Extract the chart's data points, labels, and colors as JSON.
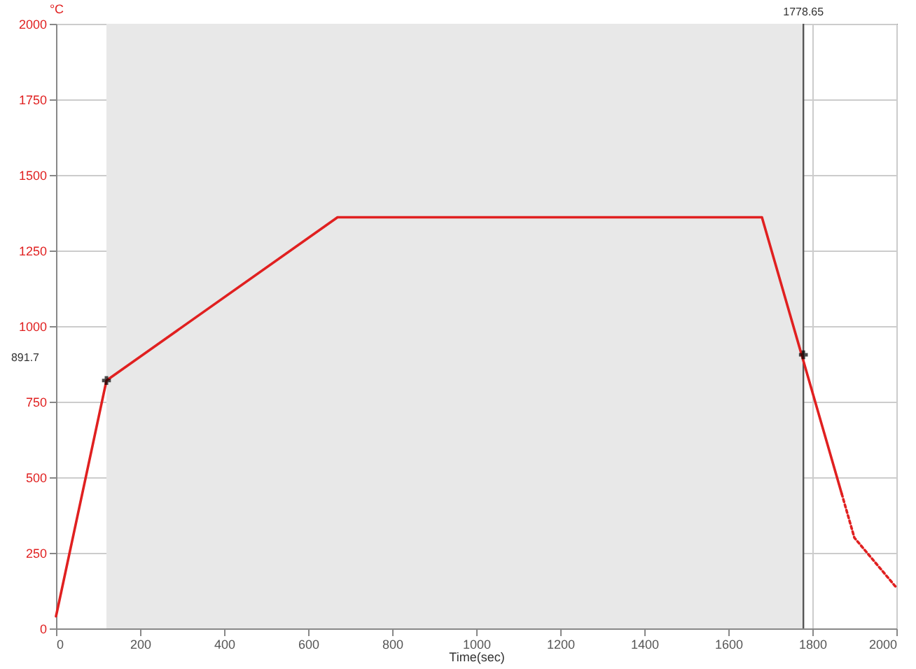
{
  "chart_data": {
    "type": "line",
    "xlabel": "Time(sec)",
    "ylabel": "°C",
    "xlim": [
      0,
      2000
    ],
    "xticks": [
      0,
      200,
      400,
      600,
      800,
      1000,
      1200,
      1400,
      1600,
      1800,
      2000
    ],
    "ylim": [
      0,
      2000
    ],
    "yticks": [
      0,
      250,
      500,
      750,
      1000,
      1250,
      1500,
      1750,
      2000
    ],
    "grid": true,
    "marker": "none",
    "series": [
      {
        "type": "line",
        "color": "#e02020",
        "line_style": "solid",
        "x": [
          0,
          120,
          670,
          1680,
          1870
        ],
        "values": [
          40,
          820,
          1360,
          1360,
          445
        ]
      },
      {
        "type": "line",
        "color": "#e02020",
        "line_style": "dotted",
        "x": [
          1870,
          1900,
          2000
        ],
        "values": [
          445,
          300,
          135
        ]
      },
      {
        "type": "scatter",
        "color": "#000000",
        "marker": "cross",
        "x": [
          120,
          1778.65
        ],
        "values": [
          820,
          905
        ]
      }
    ],
    "bands": [
      {
        "axis": "x",
        "from": 120,
        "to": 1778.65,
        "color": "#e8e8e8"
      }
    ],
    "ref_lines": [
      {
        "axis": "x",
        "value": 1778.65,
        "label": "1778.65",
        "color": "#555555"
      }
    ],
    "annotations": [
      "891.7"
    ]
  }
}
